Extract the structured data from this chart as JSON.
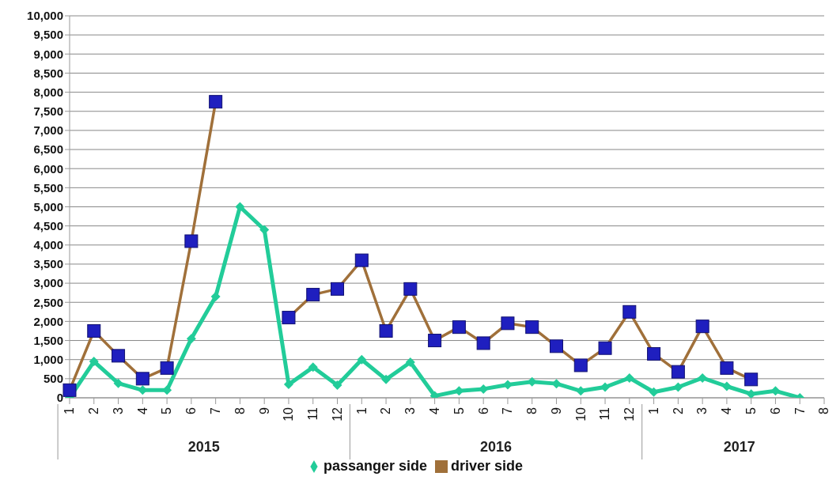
{
  "chart_data": {
    "type": "line",
    "categories": [
      "1",
      "2",
      "3",
      "4",
      "5",
      "6",
      "7",
      "8",
      "9",
      "10",
      "11",
      "12",
      "1",
      "2",
      "3",
      "4",
      "5",
      "6",
      "7",
      "8",
      "9",
      "10",
      "11",
      "12",
      "1",
      "2",
      "3",
      "4",
      "5",
      "6",
      "7",
      "8"
    ],
    "series": [
      {
        "name": "passanger side",
        "color": "#22cc99",
        "marker": "diamond",
        "values": [
          0,
          950,
          380,
          200,
          200,
          1550,
          2650,
          5000,
          4400,
          350,
          800,
          330,
          1000,
          480,
          930,
          50,
          180,
          230,
          340,
          420,
          370,
          180,
          280,
          520,
          150,
          280,
          520,
          300,
          100,
          180,
          0,
          null
        ]
      },
      {
        "name": "driver side",
        "color": "#a0703a",
        "marker": "square",
        "values": [
          200,
          1750,
          1100,
          500,
          780,
          4100,
          7750,
          null,
          null,
          2100,
          2700,
          2850,
          3600,
          1750,
          2850,
          1500,
          1850,
          1430,
          1950,
          1850,
          1350,
          850,
          1300,
          2250,
          1150,
          680,
          1870,
          780,
          480,
          null,
          null,
          null
        ]
      }
    ],
    "annotations": [
      "2015",
      "2016",
      "2017"
    ],
    "ylim": [
      0,
      10000
    ],
    "yticks": [
      0,
      500,
      {
        "value": 1000,
        "label": "1,000"
      },
      {
        "value": 1500,
        "label": "1,500"
      },
      {
        "value": 2000,
        "label": "2,000"
      },
      {
        "value": 2500,
        "label": "2,500"
      },
      {
        "value": 3000,
        "label": "3,000"
      },
      {
        "value": 3500,
        "label": "3,500"
      },
      {
        "value": 4000,
        "label": "4,000"
      },
      {
        "value": 4500,
        "label": "4,500"
      },
      {
        "value": 5000,
        "label": "5,000"
      },
      {
        "value": 5500,
        "label": "5,500"
      },
      {
        "value": 6000,
        "label": "6,000"
      },
      {
        "value": 6500,
        "label": "6,500"
      },
      {
        "value": 7000,
        "label": "7,000"
      },
      {
        "value": 7500,
        "label": "7,500"
      },
      {
        "value": 8000,
        "label": "8,000"
      },
      {
        "value": 8500,
        "label": "8,500"
      },
      {
        "value": 9000,
        "label": "9,000"
      },
      {
        "value": 9500,
        "label": "9,500"
      },
      {
        "value": 10000,
        "label": "10,000"
      }
    ],
    "grid": "y",
    "legend": "bottom"
  }
}
